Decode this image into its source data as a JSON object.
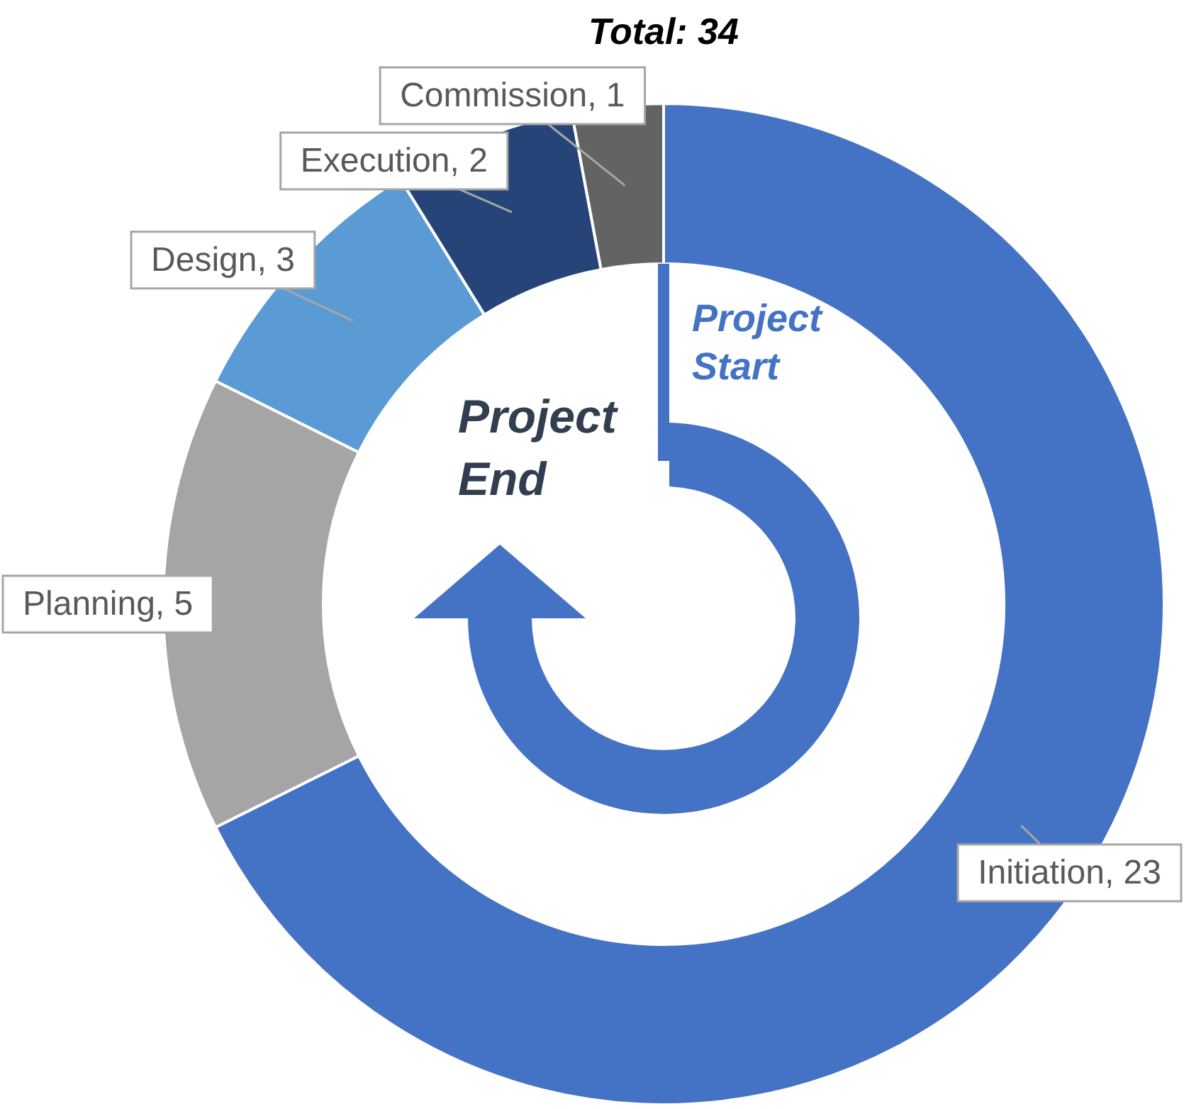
{
  "chart_data": {
    "type": "donut",
    "title": "Total: 34",
    "categories": [
      "Initiation",
      "Planning",
      "Design",
      "Execution",
      "Commission"
    ],
    "values": [
      23,
      5,
      3,
      2,
      1
    ],
    "colors": [
      "#4472c4",
      "#a5a5a5",
      "#5b9bd5",
      "#264478",
      "#636363"
    ],
    "value_labels": [
      ", 23",
      ", 5",
      ", 3",
      ", 2",
      ", 1"
    ],
    "legend": false,
    "annotations": [
      "Project Start",
      "Project End"
    ]
  }
}
